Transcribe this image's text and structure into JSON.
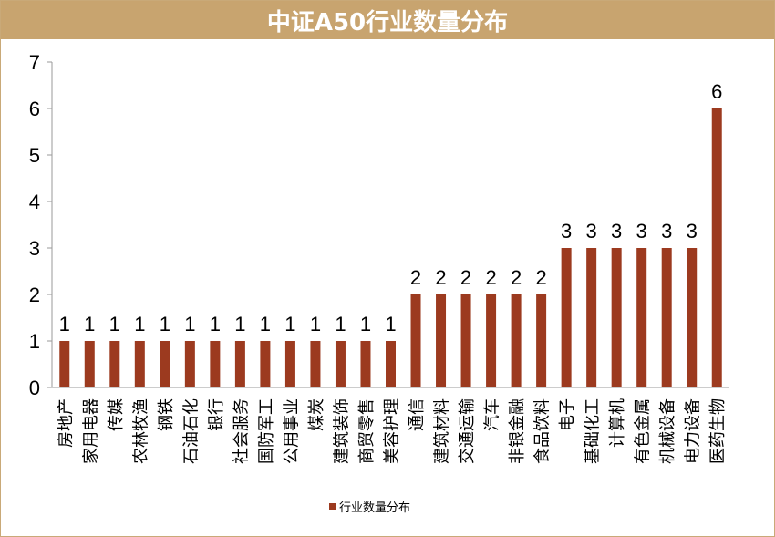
{
  "header": {
    "title": "中证A50行业数量分布"
  },
  "colors": {
    "bar": "#9c3a1f",
    "title_bg": "#c8a46f",
    "axis": "#9a9a9a"
  },
  "chart_data": {
    "type": "bar",
    "title": "中证A50行业数量分布",
    "xlabel": "",
    "ylabel": "",
    "ylim": [
      0,
      7
    ],
    "yticks": [
      0,
      1,
      2,
      3,
      4,
      5,
      6,
      7
    ],
    "grid": false,
    "legend_position": "bottom",
    "categories": [
      "房地产",
      "家用电器",
      "传媒",
      "农林牧渔",
      "钢铁",
      "石油石化",
      "银行",
      "社会服务",
      "国防军工",
      "公用事业",
      "煤炭",
      "建筑装饰",
      "商贸零售",
      "美容护理",
      "通信",
      "建筑材料",
      "交通运输",
      "汽车",
      "非银金融",
      "食品饮料",
      "电子",
      "基础化工",
      "计算机",
      "有色金属",
      "机械设备",
      "电力设备",
      "医药生物"
    ],
    "series": [
      {
        "name": "行业数量分布",
        "values": [
          1,
          1,
          1,
          1,
          1,
          1,
          1,
          1,
          1,
          1,
          1,
          1,
          1,
          1,
          2,
          2,
          2,
          2,
          2,
          2,
          3,
          3,
          3,
          3,
          3,
          3,
          6
        ]
      }
    ]
  }
}
